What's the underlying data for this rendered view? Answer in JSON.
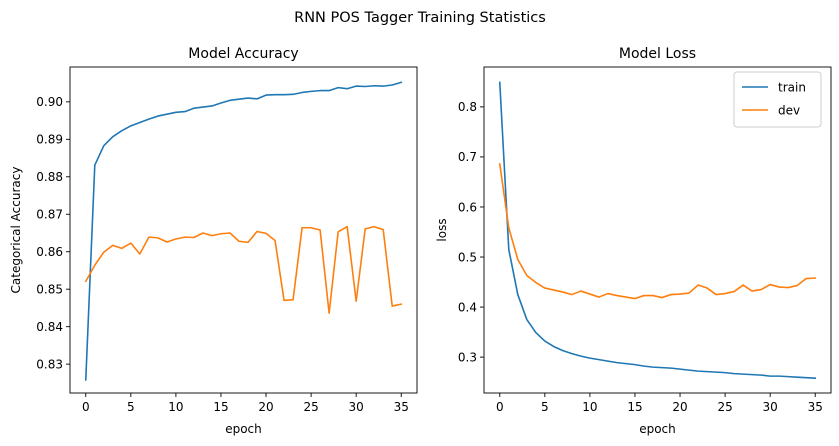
{
  "figure": {
    "suptitle": "RNN POS Tagger Training Statistics"
  },
  "colors": {
    "train": "#1f77b4",
    "dev": "#ff7f0e"
  },
  "chart_data": [
    {
      "type": "line",
      "title": "Model Accuracy",
      "xlabel": "epoch",
      "ylabel": "Categorical Accuracy",
      "xlim": [
        -1.75,
        36.75
      ],
      "ylim": [
        0.8223,
        0.9093
      ],
      "xticks": [
        0,
        5,
        10,
        15,
        20,
        25,
        30,
        35
      ],
      "yticks": [
        0.83,
        0.84,
        0.85,
        0.86,
        0.87,
        0.88,
        0.89,
        0.9
      ],
      "ytick_labels": [
        "0.83",
        "0.84",
        "0.85",
        "0.86",
        "0.87",
        "0.88",
        "0.89",
        "0.90"
      ],
      "legend": null,
      "x": [
        0,
        1,
        2,
        3,
        4,
        5,
        6,
        7,
        8,
        9,
        10,
        11,
        12,
        13,
        14,
        15,
        16,
        17,
        18,
        19,
        20,
        21,
        22,
        23,
        24,
        25,
        26,
        27,
        28,
        29,
        30,
        31,
        32,
        33,
        34,
        35
      ],
      "series": [
        {
          "name": "train",
          "color": "#1f77b4",
          "values": [
            0.8258,
            0.8831,
            0.8883,
            0.8907,
            0.8923,
            0.8936,
            0.8945,
            0.8954,
            0.8962,
            0.8967,
            0.8972,
            0.8974,
            0.8983,
            0.8986,
            0.8989,
            0.8997,
            0.9004,
            0.9007,
            0.901,
            0.9008,
            0.9018,
            0.9019,
            0.9019,
            0.902,
            0.9025,
            0.9028,
            0.903,
            0.903,
            0.9038,
            0.9035,
            0.9042,
            0.9041,
            0.9043,
            0.9042,
            0.9045,
            0.9052
          ]
        },
        {
          "name": "dev",
          "color": "#ff7f0e",
          "values": [
            0.8521,
            0.8564,
            0.8599,
            0.8617,
            0.8609,
            0.8623,
            0.8594,
            0.8639,
            0.8637,
            0.8626,
            0.8634,
            0.8639,
            0.8638,
            0.865,
            0.8643,
            0.8648,
            0.865,
            0.8628,
            0.8625,
            0.8654,
            0.8649,
            0.863,
            0.847,
            0.8472,
            0.8664,
            0.8664,
            0.8658,
            0.8436,
            0.8653,
            0.8667,
            0.8468,
            0.8661,
            0.8667,
            0.8659,
            0.8455,
            0.846
          ]
        }
      ]
    },
    {
      "type": "line",
      "title": "Model Loss",
      "xlabel": "epoch",
      "ylabel": "loss",
      "xlim": [
        -1.75,
        36.75
      ],
      "ylim": [
        0.2283,
        0.8797
      ],
      "xticks": [
        0,
        5,
        10,
        15,
        20,
        25,
        30,
        35
      ],
      "yticks": [
        0.3,
        0.4,
        0.5,
        0.6,
        0.7,
        0.8
      ],
      "ytick_labels": [
        "0.3",
        "0.4",
        "0.5",
        "0.6",
        "0.7",
        "0.8"
      ],
      "legend": "top-right",
      "x": [
        0,
        1,
        2,
        3,
        4,
        5,
        6,
        7,
        8,
        9,
        10,
        11,
        12,
        13,
        14,
        15,
        16,
        17,
        18,
        19,
        20,
        21,
        22,
        23,
        24,
        25,
        26,
        27,
        28,
        29,
        30,
        31,
        32,
        33,
        34,
        35
      ],
      "series": [
        {
          "name": "train",
          "color": "#1f77b4",
          "values": [
            0.849,
            0.515,
            0.425,
            0.375,
            0.349,
            0.332,
            0.321,
            0.313,
            0.307,
            0.302,
            0.298,
            0.295,
            0.292,
            0.289,
            0.287,
            0.285,
            0.282,
            0.28,
            0.279,
            0.278,
            0.276,
            0.274,
            0.272,
            0.271,
            0.27,
            0.269,
            0.267,
            0.266,
            0.265,
            0.264,
            0.262,
            0.262,
            0.261,
            0.26,
            0.259,
            0.258
          ]
        },
        {
          "name": "dev",
          "color": "#ff7f0e",
          "values": [
            0.686,
            0.558,
            0.495,
            0.463,
            0.449,
            0.438,
            0.434,
            0.43,
            0.425,
            0.432,
            0.426,
            0.42,
            0.427,
            0.423,
            0.42,
            0.417,
            0.423,
            0.423,
            0.419,
            0.425,
            0.426,
            0.428,
            0.444,
            0.438,
            0.425,
            0.427,
            0.431,
            0.444,
            0.432,
            0.435,
            0.445,
            0.44,
            0.439,
            0.443,
            0.457,
            0.458
          ]
        }
      ]
    }
  ]
}
